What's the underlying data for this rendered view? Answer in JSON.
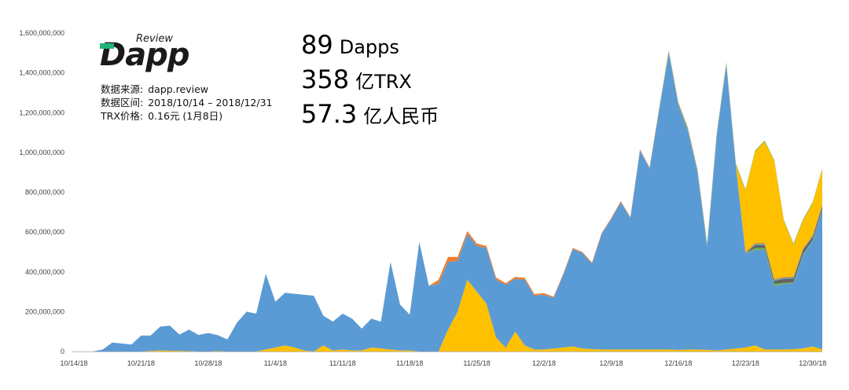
{
  "logo": {
    "brand": "Dapp",
    "sub": "Review"
  },
  "info": [
    {
      "label": "数据来源:",
      "value": "dapp.review"
    },
    {
      "label": "数据区间:",
      "value": "2018/10/14 – 2018/12/31"
    },
    {
      "label": "TRX价格:",
      "value": "0.16元 (1月8日)"
    }
  ],
  "stats": [
    {
      "number": "89",
      "unit": "Dapps"
    },
    {
      "number": "358",
      "unit": "亿TRX"
    },
    {
      "number": "57.3",
      "unit": "亿人民币"
    }
  ],
  "colors": {
    "blue": "#5b9bd5",
    "yellow": "#ffc000",
    "orange": "#ed7d31",
    "green": "#70ad47",
    "gray": "#636363",
    "teal": "#4bacc6"
  },
  "chart_data": {
    "type": "area",
    "stacked": true,
    "grid": false,
    "ylim": [
      0,
      1600000000
    ],
    "yticks": [
      0,
      200000000,
      400000000,
      600000000,
      800000000,
      1000000000,
      1200000000,
      1400000000,
      1600000000
    ],
    "ytick_labels": [
      "0",
      "200,000,000",
      "400,000,000",
      "600,000,000",
      "800,000,000",
      "1,000,000,000",
      "1,200,000,000",
      "1,400,000,000",
      "1,600,000,000"
    ],
    "xtick_labels": [
      "10/14/18",
      "10/21/18",
      "10/28/18",
      "11/4/18",
      "11/11/18",
      "11/18/18",
      "11/25/18",
      "12/2/18",
      "12/9/18",
      "12/16/18",
      "12/23/18",
      "12/30/18"
    ],
    "x": [
      "10/14",
      "10/15",
      "10/16",
      "10/17",
      "10/18",
      "10/19",
      "10/20",
      "10/21",
      "10/22",
      "10/23",
      "10/24",
      "10/25",
      "10/26",
      "10/27",
      "10/28",
      "10/29",
      "10/30",
      "10/31",
      "11/1",
      "11/2",
      "11/3",
      "11/4",
      "11/5",
      "11/6",
      "11/7",
      "11/8",
      "11/9",
      "11/10",
      "11/11",
      "11/12",
      "11/13",
      "11/14",
      "11/15",
      "11/16",
      "11/17",
      "11/18",
      "11/19",
      "11/20",
      "11/21",
      "11/22",
      "11/23",
      "11/24",
      "11/25",
      "11/26",
      "11/27",
      "11/28",
      "11/29",
      "11/30",
      "12/1",
      "12/2",
      "12/3",
      "12/4",
      "12/5",
      "12/6",
      "12/7",
      "12/8",
      "12/9",
      "12/10",
      "12/11",
      "12/12",
      "12/13",
      "12/14",
      "12/15",
      "12/16",
      "12/17",
      "12/18",
      "12/19",
      "12/20",
      "12/21",
      "12/22",
      "12/23",
      "12/24",
      "12/25",
      "12/26",
      "12/27",
      "12/28",
      "12/29",
      "12/30",
      "12/31"
    ],
    "series": [
      {
        "color": "#ffc000",
        "values": [
          0,
          0,
          0,
          0,
          0,
          0,
          0,
          0,
          3000000,
          5000000,
          4000000,
          3000000,
          2000000,
          0,
          0,
          2000000,
          0,
          0,
          0,
          0,
          10000000,
          20000000,
          30000000,
          20000000,
          5000000,
          0,
          30000000,
          5000000,
          10000000,
          5000000,
          5000000,
          20000000,
          15000000,
          10000000,
          5000000,
          5000000,
          0,
          0,
          0,
          110000000,
          200000000,
          360000000,
          300000000,
          240000000,
          70000000,
          20000000,
          100000000,
          30000000,
          10000000,
          10000000,
          15000000,
          20000000,
          25000000,
          15000000,
          12000000,
          10000000,
          10000000,
          10000000,
          10000000,
          10000000,
          10000000,
          10000000,
          10000000,
          8000000,
          10000000,
          10000000,
          8000000,
          5000000,
          10000000,
          15000000,
          20000000,
          30000000,
          10000000,
          10000000,
          10000000,
          12000000,
          15000000,
          25000000,
          10000000
        ]
      },
      {
        "color": "#5b9bd5",
        "values": [
          0,
          0,
          0,
          10000000,
          45000000,
          40000000,
          35000000,
          80000000,
          77000000,
          120000000,
          126000000,
          82000000,
          108000000,
          83000000,
          93000000,
          80000000,
          60000000,
          145000000,
          200000000,
          190000000,
          380000000,
          230000000,
          265000000,
          270000000,
          280000000,
          280000000,
          150000000,
          145000000,
          180000000,
          160000000,
          110000000,
          145000000,
          135000000,
          440000000,
          230000000,
          180000000,
          550000000,
          330000000,
          340000000,
          340000000,
          255000000,
          230000000,
          230000000,
          280000000,
          290000000,
          315000000,
          265000000,
          330000000,
          270000000,
          275000000,
          255000000,
          365000000,
          490000000,
          480000000,
          430000000,
          580000000,
          655000000,
          740000000,
          660000000,
          1000000000,
          910000000,
          1200000000,
          1490000000,
          1230000000,
          1100000000,
          890000000,
          520000000,
          1080000000,
          1430000000,
          915000000,
          475000000,
          480000000,
          500000000,
          320000000,
          330000000,
          330000000,
          470000000,
          530000000,
          700000000
        ]
      },
      {
        "color": "#70ad47",
        "values": [
          0,
          0,
          0,
          0,
          0,
          0,
          0,
          0,
          0,
          0,
          0,
          0,
          0,
          0,
          0,
          0,
          0,
          0,
          0,
          0,
          0,
          0,
          0,
          0,
          0,
          0,
          0,
          0,
          0,
          0,
          0,
          0,
          0,
          0,
          0,
          0,
          0,
          0,
          0,
          0,
          0,
          0,
          0,
          0,
          0,
          0,
          0,
          0,
          0,
          0,
          0,
          0,
          0,
          0,
          0,
          0,
          0,
          0,
          0,
          0,
          0,
          0,
          0,
          0,
          0,
          0,
          0,
          0,
          0,
          0,
          0,
          10000000,
          10000000,
          10000000,
          5000000,
          5000000,
          5000000,
          5000000,
          5000000
        ]
      },
      {
        "color": "#636363",
        "values": [
          0,
          0,
          0,
          0,
          0,
          0,
          0,
          0,
          0,
          0,
          0,
          0,
          0,
          0,
          0,
          0,
          0,
          0,
          0,
          0,
          0,
          0,
          0,
          0,
          0,
          0,
          0,
          0,
          0,
          0,
          0,
          0,
          0,
          0,
          0,
          0,
          0,
          0,
          0,
          0,
          0,
          0,
          0,
          0,
          0,
          0,
          0,
          0,
          0,
          0,
          0,
          0,
          0,
          0,
          0,
          0,
          0,
          0,
          0,
          0,
          0,
          0,
          0,
          0,
          0,
          0,
          0,
          0,
          0,
          0,
          0,
          15000000,
          15000000,
          15000000,
          20000000,
          20000000,
          20000000,
          15000000,
          15000000
        ]
      },
      {
        "color": "#4bacc6",
        "values": [
          0,
          0,
          0,
          0,
          0,
          0,
          0,
          0,
          0,
          0,
          0,
          0,
          0,
          0,
          0,
          0,
          0,
          0,
          0,
          0,
          0,
          0,
          0,
          0,
          0,
          0,
          0,
          0,
          0,
          0,
          0,
          0,
          0,
          0,
          0,
          0,
          0,
          0,
          0,
          0,
          0,
          0,
          0,
          0,
          0,
          0,
          0,
          0,
          0,
          0,
          0,
          0,
          0,
          0,
          0,
          0,
          0,
          0,
          0,
          0,
          0,
          0,
          0,
          0,
          0,
          0,
          0,
          0,
          0,
          0,
          0,
          5000000,
          5000000,
          5000000,
          5000000,
          5000000,
          5000000,
          5000000,
          5000000
        ]
      },
      {
        "color": "#ed7d31",
        "values": [
          0,
          0,
          0,
          0,
          0,
          0,
          0,
          0,
          0,
          0,
          0,
          0,
          0,
          0,
          0,
          0,
          0,
          0,
          0,
          0,
          0,
          0,
          0,
          0,
          0,
          0,
          0,
          0,
          0,
          0,
          0,
          0,
          0,
          0,
          0,
          0,
          0,
          0,
          20000000,
          25000000,
          20000000,
          15000000,
          12000000,
          10000000,
          12000000,
          8000000,
          10000000,
          10000000,
          8000000,
          8000000,
          5000000,
          5000000,
          5000000,
          5000000,
          5000000,
          5000000,
          5000000,
          5000000,
          5000000,
          5000000,
          5000000,
          5000000,
          5000000,
          5000000,
          5000000,
          5000000,
          5000000,
          5000000,
          5000000,
          5000000,
          5000000,
          5000000,
          5000000,
          5000000,
          5000000,
          5000000,
          5000000,
          5000000,
          5000000
        ]
      },
      {
        "color": "#ffc000",
        "values": [
          0,
          0,
          0,
          0,
          0,
          0,
          0,
          0,
          0,
          0,
          0,
          0,
          0,
          0,
          0,
          0,
          0,
          0,
          0,
          0,
          0,
          0,
          0,
          0,
          0,
          0,
          0,
          0,
          0,
          0,
          0,
          0,
          0,
          0,
          0,
          0,
          0,
          0,
          0,
          0,
          0,
          0,
          0,
          0,
          0,
          0,
          0,
          0,
          0,
          0,
          0,
          0,
          0,
          0,
          0,
          0,
          0,
          0,
          0,
          0,
          0,
          0,
          0,
          0,
          0,
          0,
          0,
          0,
          0,
          0,
          310000000,
          460000000,
          510000000,
          590000000,
          280000000,
          160000000,
          140000000,
          160000000,
          175000000
        ]
      },
      {
        "color": "#70ad47",
        "values": [
          0,
          0,
          0,
          0,
          0,
          0,
          0,
          0,
          0,
          0,
          0,
          0,
          0,
          0,
          0,
          0,
          0,
          0,
          0,
          0,
          0,
          0,
          0,
          0,
          0,
          0,
          0,
          0,
          0,
          0,
          0,
          0,
          0,
          0,
          0,
          0,
          0,
          0,
          0,
          0,
          0,
          0,
          0,
          0,
          0,
          0,
          0,
          0,
          0,
          0,
          0,
          0,
          0,
          0,
          0,
          0,
          0,
          0,
          0,
          0,
          0,
          8000000,
          8000000,
          8000000,
          8000000,
          8000000,
          8000000,
          8000000,
          8000000,
          8000000,
          5000000,
          5000000,
          5000000,
          5000000,
          5000000,
          5000000,
          5000000,
          5000000,
          5000000
        ]
      }
    ]
  }
}
